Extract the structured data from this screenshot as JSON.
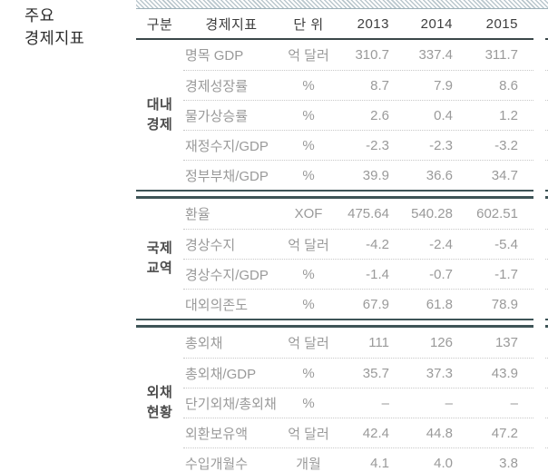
{
  "page": {
    "title_line1": "주요",
    "title_line2": "경제지표"
  },
  "table": {
    "headers": {
      "category": "구분",
      "indicator": "경제지표",
      "unit": "단 위",
      "y2013": "2013",
      "y2014": "2014",
      "y2015": "2015"
    },
    "groups": [
      {
        "name_line1": "대내",
        "name_line2": "경제",
        "rows": [
          {
            "indicator": "명목 GDP",
            "unit": "억 달러",
            "y2013": "310.7",
            "y2014": "337.4",
            "y2015": "311.7"
          },
          {
            "indicator": "경제성장률",
            "unit": "%",
            "y2013": "8.7",
            "y2014": "7.9",
            "y2015": "8.6"
          },
          {
            "indicator": "물가상승률",
            "unit": "%",
            "y2013": "2.6",
            "y2014": "0.4",
            "y2015": "1.2"
          },
          {
            "indicator": "재정수지/GDP",
            "unit": "%",
            "y2013": "-2.3",
            "y2014": "-2.3",
            "y2015": "-3.2"
          },
          {
            "indicator": "정부부채/GDP",
            "unit": "%",
            "y2013": "39.9",
            "y2014": "36.6",
            "y2015": "34.7"
          }
        ]
      },
      {
        "name_line1": "국제",
        "name_line2": "교역",
        "rows": [
          {
            "indicator": "환율",
            "unit": "XOF",
            "y2013": "475.64",
            "y2014": "540.28",
            "y2015": "602.51"
          },
          {
            "indicator": "경상수지",
            "unit": "억 달러",
            "y2013": "-4.2",
            "y2014": "-2.4",
            "y2015": "-5.4"
          },
          {
            "indicator": "경상수지/GDP",
            "unit": "%",
            "y2013": "-1.4",
            "y2014": "-0.7",
            "y2015": "-1.7"
          },
          {
            "indicator": "대외의존도",
            "unit": "%",
            "y2013": "67.9",
            "y2014": "61.8",
            "y2015": "78.9"
          }
        ]
      },
      {
        "name_line1": "외채",
        "name_line2": "현황",
        "rows": [
          {
            "indicator": "총외채",
            "unit": "억 달러",
            "y2013": "111",
            "y2014": "126",
            "y2015": "137"
          },
          {
            "indicator": "총외채/GDP",
            "unit": "%",
            "y2013": "35.7",
            "y2014": "37.3",
            "y2015": "43.9"
          },
          {
            "indicator": "단기외채/총외채",
            "unit": "%",
            "y2013": "–",
            "y2014": "–",
            "y2015": "–"
          },
          {
            "indicator": "외환보유액",
            "unit": "억 달러",
            "y2013": "42.4",
            "y2014": "44.8",
            "y2015": "47.2"
          },
          {
            "indicator": "수입개월수",
            "unit": "개월",
            "y2013": "4.1",
            "y2014": "4.0",
            "y2015": "3.8"
          }
        ]
      }
    ]
  },
  "colors": {
    "accent_dark_line": "#3e5457",
    "header_underline": "#3a4749",
    "hatch_stripe": "#bac7cd",
    "row_divider": "#c8c8c8",
    "text_dark": "#3d3d3d",
    "text_muted": "#9a9a9a"
  }
}
